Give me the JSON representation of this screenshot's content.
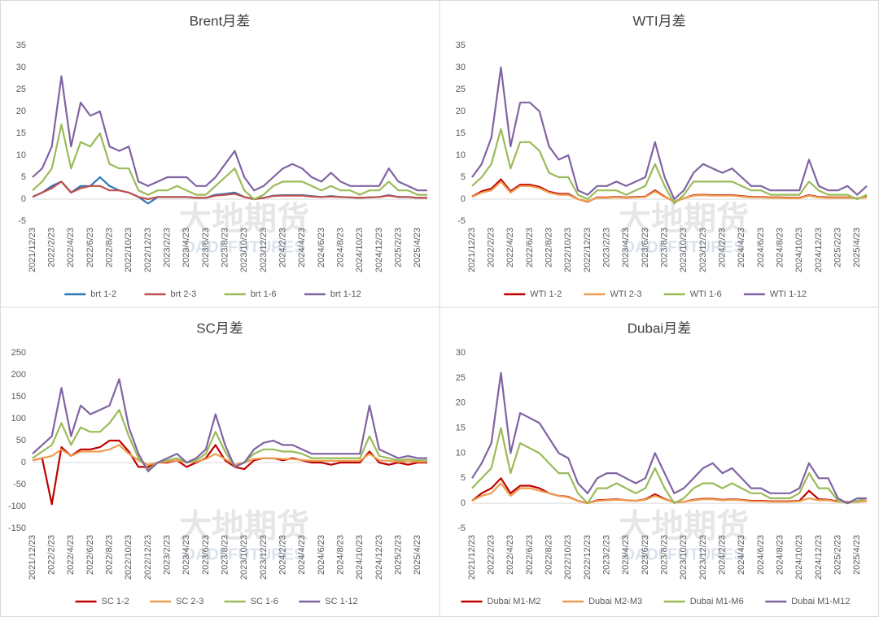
{
  "watermark": [
    "大地期货",
    "DADI FUTURES"
  ],
  "chart_data": [
    {
      "type": "line",
      "title": "Brent月差",
      "categories": [
        "2021/12/23",
        null,
        "2022/2/23",
        null,
        "2022/4/23",
        null,
        "2022/6/23",
        null,
        "2022/8/23",
        null,
        "2022/10/23",
        null,
        "2022/12/23",
        null,
        "2023/2/23",
        null,
        "2023/4/23",
        null,
        "2023/6/23",
        null,
        "2023/8/23",
        null,
        "2023/10/23",
        null,
        "2023/12/23",
        null,
        "2024/2/23",
        null,
        "2024/4/23",
        null,
        "2024/6/23",
        null,
        "2024/8/23",
        null,
        "2024/10/23",
        null,
        "2024/12/23",
        null,
        "2025/2/23",
        null,
        "2025/4/23",
        null
      ],
      "ylim": [
        -5,
        35
      ],
      "yticks": [
        -5,
        0,
        5,
        10,
        15,
        20,
        25,
        30,
        35
      ],
      "series": [
        {
          "name": "brt 1-2",
          "color": "#2e75b6",
          "values": [
            0.5,
            1.5,
            3,
            4,
            1.5,
            3,
            3,
            5,
            3,
            2,
            1.5,
            0.5,
            -1,
            0.5,
            0.5,
            0.5,
            0.5,
            0.3,
            0.3,
            1,
            1.2,
            1.5,
            0.5,
            0,
            0.3,
            0.8,
            0.9,
            0.9,
            0.9,
            0.7,
            0.5,
            0.7,
            0.5,
            0.4,
            0.3,
            0.4,
            0.5,
            0.9,
            0.5,
            0.5,
            0.3,
            0.3
          ]
        },
        {
          "name": "brt 2-3",
          "color": "#c0504d",
          "values": [
            0.5,
            1.5,
            2.5,
            4,
            1.5,
            2.5,
            3,
            3,
            2,
            2,
            1.5,
            0.5,
            0,
            0.5,
            0.5,
            0.5,
            0.5,
            0.3,
            0.3,
            0.8,
            1,
            1.2,
            0.5,
            0,
            0.3,
            0.7,
            0.8,
            0.8,
            0.8,
            0.6,
            0.5,
            0.6,
            0.5,
            0.4,
            0.3,
            0.4,
            0.5,
            0.8,
            0.5,
            0.5,
            0.3,
            0.3
          ]
        },
        {
          "name": "brt 1-6",
          "color": "#9bbb59",
          "values": [
            2,
            4,
            7,
            17,
            7,
            13,
            12,
            15,
            8,
            7,
            7,
            2,
            1,
            2,
            2,
            3,
            2,
            1,
            1,
            3,
            5,
            7,
            2,
            0,
            1,
            3,
            4,
            4,
            4,
            3,
            2,
            3,
            2,
            2,
            1,
            2,
            2,
            4,
            2,
            2,
            1,
            1
          ]
        },
        {
          "name": "brt 1-12",
          "color": "#8064a2",
          "values": [
            5,
            7,
            12,
            28,
            12,
            22,
            19,
            20,
            12,
            11,
            12,
            4,
            3,
            4,
            5,
            5,
            5,
            3,
            3,
            5,
            8,
            11,
            5,
            2,
            3,
            5,
            7,
            8,
            7,
            5,
            4,
            6,
            4,
            3,
            3,
            3,
            3,
            7,
            4,
            3,
            2,
            2
          ]
        }
      ]
    },
    {
      "type": "line",
      "title": "WTI月差",
      "categories": [
        "2021/12/23",
        null,
        "2022/2/23",
        null,
        "2022/4/23",
        null,
        "2022/6/23",
        null,
        "2022/8/23",
        null,
        "2022/10/23",
        null,
        "2022/12/23",
        null,
        "2023/2/23",
        null,
        "2023/4/23",
        null,
        "2023/6/23",
        null,
        "2023/8/23",
        null,
        "2023/10/23",
        null,
        "2023/12/23",
        null,
        "2024/2/23",
        null,
        "2024/4/23",
        null,
        "2024/6/23",
        null,
        "2024/8/23",
        null,
        "2024/10/23",
        null,
        "2024/12/23",
        null,
        "2025/2/23",
        null,
        "2025/4/23",
        null
      ],
      "ylim": [
        -5,
        35
      ],
      "yticks": [
        -5,
        0,
        5,
        10,
        15,
        20,
        25,
        30,
        35
      ],
      "series": [
        {
          "name": "WTI 1-2",
          "color": "#c00000",
          "values": [
            0.6,
            1.8,
            2.4,
            4.5,
            1.8,
            3.3,
            3.3,
            2.8,
            1.7,
            1.2,
            1.2,
            0,
            -0.6,
            0.4,
            0.4,
            0.5,
            0.4,
            0.5,
            0.6,
            2,
            0.6,
            -0.6,
            0.2,
            0.9,
            1,
            0.9,
            0.9,
            0.9,
            0.7,
            0.5,
            0.5,
            0.4,
            0.4,
            0.3,
            0.3,
            0.9,
            0.5,
            0.4,
            0.4,
            0.4,
            0.2,
            0.5
          ]
        },
        {
          "name": "WTI 2-3",
          "color": "#ed9d4f",
          "values": [
            0.5,
            1.5,
            2,
            4,
            1.5,
            3,
            3,
            2.5,
            1.5,
            1,
            1,
            0,
            -0.5,
            0.3,
            0.3,
            0.4,
            0.3,
            0.4,
            0.5,
            1.8,
            0.5,
            -0.5,
            0.2,
            0.8,
            0.9,
            0.8,
            0.8,
            0.8,
            0.6,
            0.4,
            0.4,
            0.3,
            0.3,
            0.2,
            0.2,
            0.8,
            0.4,
            0.3,
            0.3,
            0.3,
            0.2,
            0.4
          ]
        },
        {
          "name": "WTI 1-6",
          "color": "#9bbb59",
          "values": [
            3,
            5,
            8,
            16,
            7,
            13,
            13,
            11,
            6,
            5,
            5,
            1,
            0,
            2,
            2,
            2,
            1,
            2,
            3,
            8,
            3,
            -1,
            1,
            4,
            4,
            4,
            4,
            4,
            3,
            2,
            2,
            1,
            1,
            1,
            1,
            4,
            2,
            1,
            1,
            1,
            0,
            1
          ]
        },
        {
          "name": "WTI 1-12",
          "color": "#8064a2",
          "values": [
            5,
            8,
            14,
            30,
            12,
            22,
            22,
            20,
            12,
            9,
            10,
            2,
            1,
            3,
            3,
            4,
            3,
            4,
            5,
            13,
            5,
            0,
            2,
            6,
            8,
            7,
            6,
            7,
            5,
            3,
            3,
            2,
            2,
            2,
            2,
            9,
            3,
            2,
            2,
            3,
            1,
            3
          ]
        }
      ]
    },
    {
      "type": "line",
      "title": "SC月差",
      "categories": [
        "2021/12/23",
        null,
        "2022/2/23",
        null,
        "2022/4/23",
        null,
        "2022/6/23",
        null,
        "2022/8/23",
        null,
        "2022/10/23",
        null,
        "2022/12/23",
        null,
        "2023/2/23",
        null,
        "2023/4/23",
        null,
        "2023/6/23",
        null,
        "2023/8/23",
        null,
        "2023/10/23",
        null,
        "2023/12/23",
        null,
        "2024/2/23",
        null,
        "2024/4/23",
        null,
        "2024/6/23",
        null,
        "2024/8/23",
        null,
        "2024/10/23",
        null,
        "2024/12/23",
        null,
        "2025/2/23",
        null,
        "2025/4/23",
        null
      ],
      "ylim": [
        -150,
        250
      ],
      "yticks": [
        -150,
        -100,
        -50,
        0,
        50,
        100,
        150,
        200,
        250
      ],
      "series": [
        {
          "name": "SC 1-2",
          "color": "#c00000",
          "values": [
            5,
            10,
            -95,
            35,
            15,
            30,
            30,
            35,
            50,
            50,
            25,
            -10,
            -10,
            0,
            0,
            5,
            -10,
            0,
            10,
            40,
            5,
            -10,
            -15,
            5,
            10,
            10,
            5,
            10,
            5,
            0,
            0,
            -5,
            0,
            0,
            0,
            25,
            0,
            -5,
            0,
            -5,
            0,
            0
          ]
        },
        {
          "name": "SC 2-3",
          "color": "#ed9d4f",
          "values": [
            5,
            10,
            15,
            30,
            15,
            25,
            25,
            25,
            30,
            40,
            20,
            5,
            -5,
            0,
            2,
            5,
            0,
            2,
            8,
            20,
            8,
            -5,
            0,
            8,
            10,
            10,
            8,
            8,
            6,
            4,
            4,
            4,
            4,
            4,
            4,
            20,
            5,
            4,
            2,
            3,
            2,
            2
          ]
        },
        {
          "name": "SC 1-6",
          "color": "#9bbb59",
          "values": [
            10,
            25,
            40,
            90,
            40,
            80,
            70,
            70,
            90,
            120,
            60,
            10,
            -15,
            0,
            5,
            10,
            0,
            5,
            20,
            70,
            25,
            -10,
            0,
            20,
            30,
            30,
            25,
            25,
            20,
            10,
            10,
            10,
            10,
            10,
            10,
            60,
            15,
            10,
            5,
            8,
            5,
            5
          ]
        },
        {
          "name": "SC 1-12",
          "color": "#8064a2",
          "values": [
            20,
            40,
            60,
            170,
            60,
            130,
            110,
            120,
            130,
            190,
            80,
            20,
            -20,
            0,
            10,
            20,
            0,
            10,
            30,
            110,
            40,
            -10,
            0,
            30,
            45,
            50,
            40,
            40,
            30,
            20,
            20,
            20,
            20,
            20,
            20,
            130,
            30,
            20,
            10,
            15,
            10,
            10
          ]
        }
      ]
    },
    {
      "type": "line",
      "title": "Dubai月差",
      "categories": [
        "2021/12/23",
        null,
        "2022/2/23",
        null,
        "2022/4/23",
        null,
        "2022/6/23",
        null,
        "2022/8/23",
        null,
        "2022/10/23",
        null,
        "2022/12/23",
        null,
        "2023/2/23",
        null,
        "2023/4/23",
        null,
        "2023/6/23",
        null,
        "2023/8/23",
        null,
        "2023/10/23",
        null,
        "2023/12/23",
        null,
        "2024/2/23",
        null,
        "2024/4/23",
        null,
        "2024/6/23",
        null,
        "2024/8/23",
        null,
        "2024/10/23",
        null,
        "2024/12/23",
        null,
        "2025/2/23",
        null,
        "2025/4/23",
        null
      ],
      "ylim": [
        -5,
        30
      ],
      "yticks": [
        -5,
        0,
        5,
        10,
        15,
        20,
        25,
        30
      ],
      "series": [
        {
          "name": "Dubai M1-M2",
          "color": "#c00000",
          "values": [
            0.5,
            2,
            3,
            5,
            2,
            3.5,
            3.5,
            3,
            2,
            1.5,
            1.3,
            0.5,
            0,
            0.6,
            0.7,
            0.8,
            0.6,
            0.5,
            0.8,
            1.8,
            0.9,
            0.2,
            0.3,
            0.7,
            0.9,
            0.9,
            0.7,
            0.8,
            0.7,
            0.5,
            0.5,
            0.4,
            0.4,
            0.4,
            0.5,
            2.5,
            0.8,
            0.7,
            0.4,
            0.3,
            0.3,
            0.5
          ]
        },
        {
          "name": "Dubai M2-M3",
          "color": "#ed9d4f",
          "values": [
            0.5,
            1.5,
            2,
            4,
            1.5,
            3,
            3,
            2.5,
            2,
            1.5,
            1.2,
            0.5,
            0,
            0.5,
            0.6,
            0.7,
            0.6,
            0.5,
            0.7,
            1.5,
            0.8,
            0.2,
            0.3,
            0.6,
            0.8,
            0.8,
            0.6,
            0.7,
            0.6,
            0.4,
            0.4,
            0.3,
            0.3,
            0.3,
            0.4,
            1,
            0.6,
            0.6,
            0.3,
            0.3,
            0.3,
            0.5
          ]
        },
        {
          "name": "Dubai M1-M6",
          "color": "#9bbb59",
          "values": [
            3,
            5,
            7,
            15,
            6,
            12,
            11,
            10,
            8,
            6,
            6,
            2,
            0,
            3,
            3,
            4,
            3,
            2,
            3,
            7,
            3,
            0,
            1,
            3,
            4,
            4,
            3,
            4,
            3,
            2,
            2,
            1,
            1,
            1,
            2,
            6,
            3,
            3,
            0.5,
            0,
            0.5,
            1
          ]
        },
        {
          "name": "Dubai M1-M12",
          "color": "#8064a2",
          "values": [
            5,
            8,
            12,
            26,
            10,
            18,
            17,
            16,
            13,
            10,
            9,
            4,
            2,
            5,
            6,
            6,
            5,
            4,
            5,
            10,
            6,
            2,
            3,
            5,
            7,
            8,
            6,
            7,
            5,
            3,
            3,
            2,
            2,
            2,
            3,
            8,
            5,
            5,
            1,
            0,
            1,
            1
          ]
        }
      ]
    }
  ]
}
